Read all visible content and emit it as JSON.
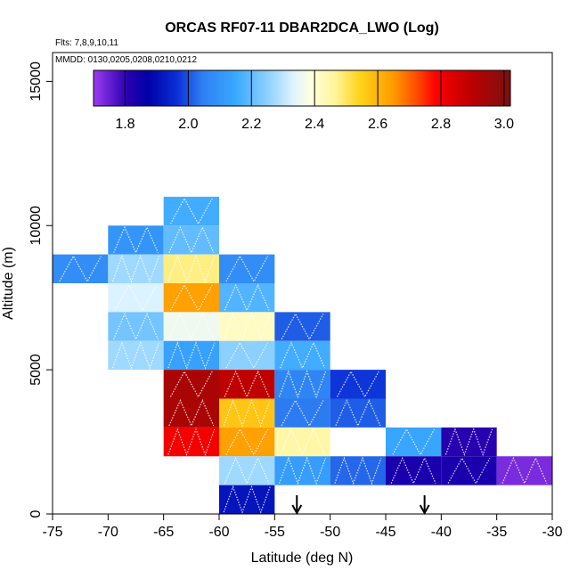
{
  "chart_data": {
    "type": "heatmap",
    "title": "ORCAS RF07-11 DBAR2DCA_LWO (Log)",
    "flights_note": "Flts: 7,8,9,10,11",
    "dates_note": "MMDD: 0130,0205,0208,0210,0212",
    "xlabel": "Latitude (deg N)",
    "ylabel": "Altitude (m)",
    "xlim": [
      -75,
      -30
    ],
    "ylim": [
      0,
      16000
    ],
    "x_ticks": [
      -75,
      -70,
      -65,
      -60,
      -55,
      -50,
      -45,
      -40,
      -35,
      -30
    ],
    "x_tick_labels": [
      "-75",
      "-70",
      "-65",
      "-60",
      "-55",
      "-50",
      "-45",
      "-40",
      "-35",
      "-30"
    ],
    "y_ticks": [
      0,
      5000,
      10000,
      15000
    ],
    "y_tick_labels": [
      "0",
      "5000",
      "10000",
      "15000"
    ],
    "colorbar": {
      "min": 1.7,
      "max": 3.02,
      "ticks": [
        1.8,
        2.0,
        2.2,
        2.4,
        2.6,
        2.8,
        3.0
      ],
      "tick_labels": [
        "1.8",
        "2.0",
        "2.2",
        "2.4",
        "2.6",
        "2.8",
        "3.0"
      ]
    },
    "arrows_at_latitude": [
      -53,
      -41.5
    ],
    "cells": [
      {
        "lat": -75,
        "alt": 8000,
        "value": 2.08
      },
      {
        "lat": -70,
        "alt": 9000,
        "value": 2.1
      },
      {
        "lat": -70,
        "alt": 8000,
        "value": 2.27
      },
      {
        "lat": -70,
        "alt": 7000,
        "value": 2.33
      },
      {
        "lat": -70,
        "alt": 6000,
        "value": 2.22
      },
      {
        "lat": -70,
        "alt": 5000,
        "value": 2.27
      },
      {
        "lat": -65,
        "alt": 10000,
        "value": 2.16
      },
      {
        "lat": -65,
        "alt": 9000,
        "value": 2.2
      },
      {
        "lat": -65,
        "alt": 8000,
        "value": 2.48
      },
      {
        "lat": -65,
        "alt": 7000,
        "value": 2.64
      },
      {
        "lat": -65,
        "alt": 6000,
        "value": 2.36
      },
      {
        "lat": -65,
        "alt": 5000,
        "value": 2.13
      },
      {
        "lat": -65,
        "alt": 4000,
        "value": 2.93
      },
      {
        "lat": -65,
        "alt": 3000,
        "value": 2.93
      },
      {
        "lat": -65,
        "alt": 2000,
        "value": 2.8
      },
      {
        "lat": -60,
        "alt": 8000,
        "value": 2.08
      },
      {
        "lat": -60,
        "alt": 7000,
        "value": 2.18
      },
      {
        "lat": -60,
        "alt": 6000,
        "value": 2.42
      },
      {
        "lat": -60,
        "alt": 5000,
        "value": 2.25
      },
      {
        "lat": -60,
        "alt": 4000,
        "value": 2.89
      },
      {
        "lat": -60,
        "alt": 3000,
        "value": 2.57
      },
      {
        "lat": -60,
        "alt": 2000,
        "value": 2.64
      },
      {
        "lat": -60,
        "alt": 1000,
        "value": 2.27
      },
      {
        "lat": -60,
        "alt": 0,
        "value": 1.91
      },
      {
        "lat": -55,
        "alt": 6000,
        "value": 2.01
      },
      {
        "lat": -55,
        "alt": 5000,
        "value": 2.16
      },
      {
        "lat": -55,
        "alt": 4000,
        "value": 2.06
      },
      {
        "lat": -55,
        "alt": 3000,
        "value": 2.04
      },
      {
        "lat": -55,
        "alt": 2000,
        "value": 2.45
      },
      {
        "lat": -55,
        "alt": 1000,
        "value": 2.12
      },
      {
        "lat": -50,
        "alt": 4000,
        "value": 1.97
      },
      {
        "lat": -50,
        "alt": 3000,
        "value": 2.01
      },
      {
        "lat": -50,
        "alt": 1000,
        "value": 2.02
      },
      {
        "lat": -45,
        "alt": 2000,
        "value": 2.14
      },
      {
        "lat": -45,
        "alt": 1000,
        "value": 1.83
      },
      {
        "lat": -40,
        "alt": 2000,
        "value": 1.81
      },
      {
        "lat": -40,
        "alt": 1000,
        "value": 1.83
      },
      {
        "lat": -35,
        "alt": 1000,
        "value": 1.73
      }
    ]
  }
}
